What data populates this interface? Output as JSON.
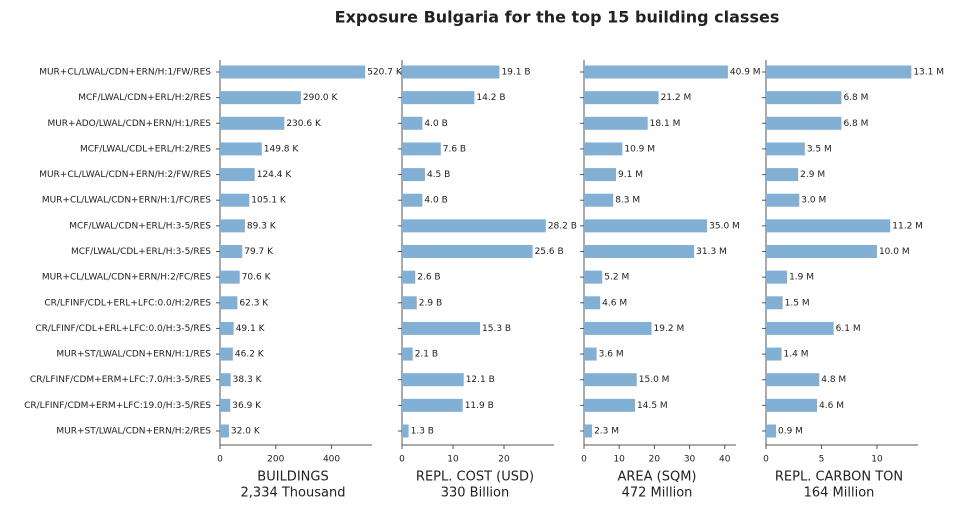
{
  "chart_data": [
    {
      "type": "bar",
      "title": "Exposure Bulgaria for the top 15 building classes",
      "categories": [
        "MUR+CL/LWAL/CDN+ERN/H:1/FW/RES",
        "MCF/LWAL/CDN+ERL/H:2/RES",
        "MUR+ADO/LWAL/CDN+ERN/H:1/RES",
        "MCF/LWAL/CDL+ERL/H:2/RES",
        "MUR+CL/LWAL/CDN+ERN/H:2/FW/RES",
        "MUR+CL/LWAL/CDN+ERN/H:1/FC/RES",
        "MCF/LWAL/CDN+ERL/H:3-5/RES",
        "MCF/LWAL/CDL+ERL/H:3-5/RES",
        "MUR+CL/LWAL/CDN+ERN/H:2/FC/RES",
        "CR/LFINF/CDL+ERL+LFC:0.0/H:2/RES",
        "CR/LFINF/CDL+ERL+LFC:0.0/H:3-5/RES",
        "MUR+ST/LWAL/CDN+ERN/H:1/RES",
        "CR/LFINF/CDM+ERM+LFC:7.0/H:3-5/RES",
        "CR/LFINF/CDM+ERM+LFC:19.0/H:3-5/RES",
        "MUR+ST/LWAL/CDN+ERN/H:2/RES"
      ],
      "xlabel": "BUILDINGS",
      "xlabel_note": "2,334 Thousand",
      "color": "#82b0d4",
      "values": [
        520.7,
        290.0,
        230.6,
        149.8,
        124.4,
        105.1,
        89.3,
        79.7,
        70.6,
        62.3,
        49.1,
        46.2,
        38.3,
        36.9,
        32.0
      ],
      "value_labels": [
        "520.7 K",
        "290.0 K",
        "230.6 K",
        "149.8 K",
        "124.4 K",
        "105.1 K",
        "89.3 K",
        "79.7 K",
        "70.6 K",
        "62.3 K",
        "49.1 K",
        "46.2 K",
        "38.3 K",
        "36.9 K",
        "32.0 K"
      ],
      "xlim": [
        0,
        545
      ],
      "xticks": [
        0,
        200,
        400
      ]
    },
    {
      "type": "bar",
      "xlabel": "REPL. COST (USD)",
      "xlabel_note": "330 Billion",
      "color": "#82b0d4",
      "values": [
        19.1,
        14.2,
        4.0,
        7.6,
        4.5,
        4.0,
        28.2,
        25.6,
        2.6,
        2.9,
        15.3,
        2.1,
        12.1,
        11.9,
        1.3
      ],
      "value_labels": [
        "19.1 B",
        "14.2 B",
        "4.0 B",
        "7.6 B",
        "4.5 B",
        "4.0 B",
        "28.2 B",
        "25.6 B",
        "2.6 B",
        "2.9 B",
        "15.3 B",
        "2.1 B",
        "12.1 B",
        "11.9 B",
        "1.3 B"
      ],
      "xlim": [
        0,
        29.8
      ],
      "xticks": [
        0,
        10,
        20
      ]
    },
    {
      "type": "bar",
      "xlabel": "AREA (SQM)",
      "xlabel_note": "472 Million",
      "color": "#82b0d4",
      "values": [
        40.9,
        21.2,
        18.1,
        10.9,
        9.1,
        8.3,
        35.0,
        31.3,
        5.2,
        4.6,
        19.2,
        3.6,
        15.0,
        14.5,
        2.3
      ],
      "value_labels": [
        "40.9 M",
        "21.2 M",
        "18.1 M",
        "10.9 M",
        "9.1 M",
        "8.3 M",
        "35.0 M",
        "31.3 M",
        "5.2 M",
        "4.6 M",
        "19.2 M",
        "3.6 M",
        "15.0 M",
        "14.5 M",
        "2.3 M"
      ],
      "xlim": [
        0,
        43.2
      ],
      "xticks": [
        0,
        10,
        20,
        30,
        40
      ]
    },
    {
      "type": "bar",
      "xlabel": "REPL. CARBON TON",
      "xlabel_note": "164 Million",
      "color": "#82b0d4",
      "values": [
        13.1,
        6.8,
        6.8,
        3.5,
        2.9,
        3.0,
        11.2,
        10.0,
        1.9,
        1.5,
        6.1,
        1.4,
        4.8,
        4.6,
        0.9
      ],
      "value_labels": [
        "13.1 M",
        "6.8 M",
        "6.8 M",
        "3.5 M",
        "2.9 M",
        "3.0 M",
        "11.2 M",
        "10.0 M",
        "1.9 M",
        "1.5 M",
        "6.1 M",
        "1.4 M",
        "4.8 M",
        "4.6 M",
        "0.9 M"
      ],
      "xlim": [
        0,
        13.7
      ],
      "xticks": [
        0,
        5,
        10
      ]
    }
  ]
}
